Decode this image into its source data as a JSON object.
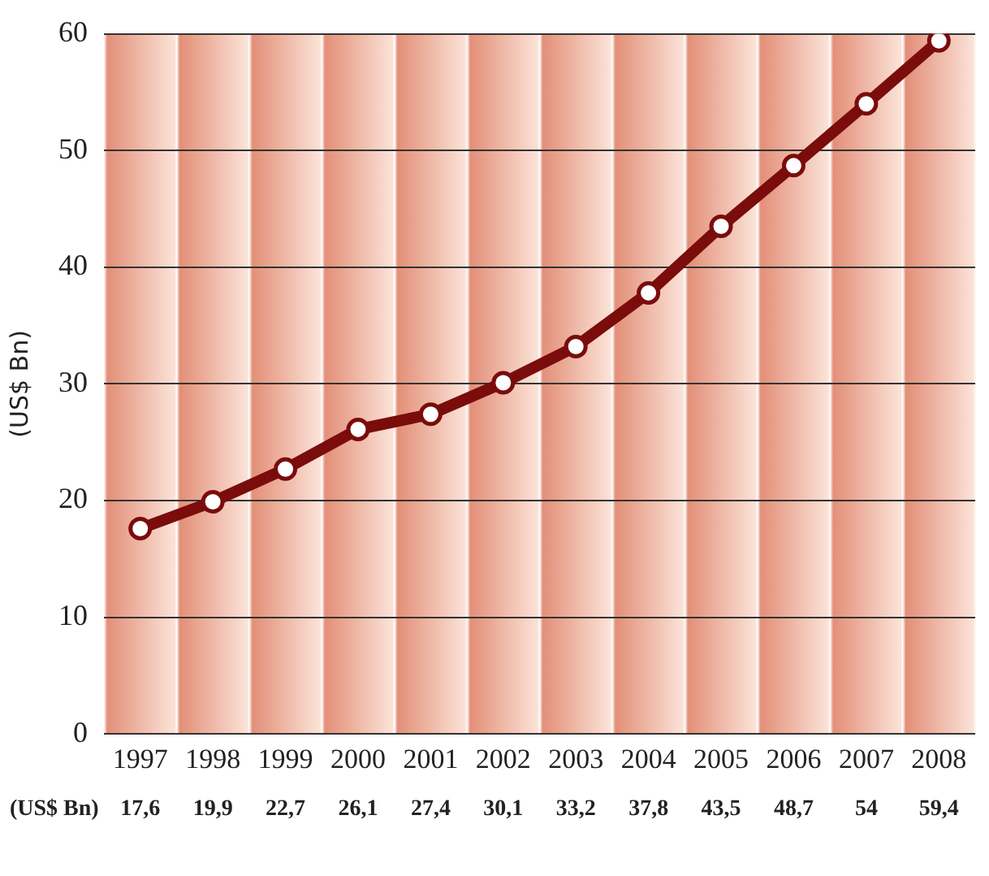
{
  "chart_data": {
    "type": "line",
    "ylabel": "(US$ Bn)",
    "categories": [
      "1997",
      "1998",
      "1999",
      "2000",
      "2001",
      "2002",
      "2003",
      "2004",
      "2005",
      "2006",
      "2007",
      "2008"
    ],
    "series": [
      {
        "color": "#7a0c0c",
        "values": [
          17.6,
          19.9,
          22.7,
          26.1,
          27.4,
          30.1,
          33.2,
          37.8,
          43.5,
          48.7,
          54,
          59.4
        ],
        "value_labels": [
          "17,6",
          "19,9",
          "22,7",
          "26,1",
          "27,4",
          "30,1",
          "33,2",
          "37,8",
          "43,5",
          "48,7",
          "54",
          "59,4"
        ]
      }
    ],
    "annotations": [
      "(US$ Bn)"
    ],
    "ylim": [
      0,
      60
    ],
    "yticks": [
      0,
      10,
      20,
      30,
      40,
      50,
      60
    ],
    "grid": "y",
    "legend": false,
    "marker": "circle",
    "line_style": "solid"
  }
}
